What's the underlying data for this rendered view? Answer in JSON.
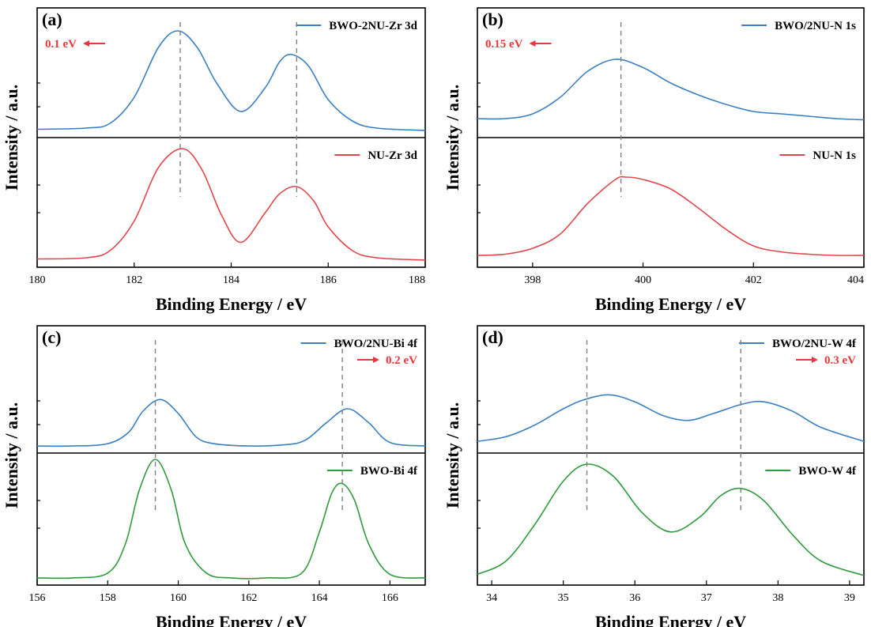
{
  "colors": {
    "blue": "#3a7fc1",
    "red": "#e0474c",
    "green": "#2e9a3c",
    "shift": "#e8383d",
    "ref": "#808080"
  },
  "chart_data": [
    {
      "panel": "(a)",
      "type": "line",
      "xlabel": "Binding Energy / eV",
      "ylabel": "Intensity / a.u.",
      "xlim": [
        180,
        188
      ],
      "xticks": [
        180,
        182,
        184,
        186,
        188
      ],
      "xtick_labels": [
        "180",
        "182",
        "184",
        "186",
        "188"
      ],
      "shift": {
        "text": "0.1 eV",
        "direction": "left",
        "position": "top-left"
      },
      "ref_lines_x": [
        182.95,
        185.35
      ],
      "legend_placement": "top-right",
      "series": [
        {
          "name": "BWO-2NU-Zr 3d",
          "color": "#3a7fc1",
          "x": [
            180,
            181,
            181.5,
            182,
            182.5,
            182.9,
            183.3,
            183.7,
            184.2,
            184.7,
            185.0,
            185.25,
            185.6,
            186.0,
            186.5,
            187,
            188
          ],
          "y": [
            0.03,
            0.04,
            0.08,
            0.3,
            0.72,
            0.86,
            0.72,
            0.42,
            0.18,
            0.38,
            0.6,
            0.66,
            0.56,
            0.28,
            0.1,
            0.04,
            0.02
          ]
        },
        {
          "name": "NU-Zr 3d",
          "color": "#e0474c",
          "x": [
            180,
            181,
            181.5,
            182,
            182.5,
            183.0,
            183.4,
            183.8,
            184.2,
            184.7,
            185.0,
            185.35,
            185.7,
            186.0,
            186.5,
            187,
            188
          ],
          "y": [
            0.03,
            0.04,
            0.1,
            0.35,
            0.8,
            0.96,
            0.78,
            0.4,
            0.17,
            0.42,
            0.58,
            0.64,
            0.52,
            0.3,
            0.1,
            0.04,
            0.02
          ]
        }
      ]
    },
    {
      "panel": "(b)",
      "type": "line",
      "xlabel": "Binding Energy / eV",
      "ylabel": "Intensity / a.u.",
      "xlim": [
        397,
        404
      ],
      "xticks": [
        398,
        400,
        402,
        404
      ],
      "xtick_labels": [
        "398",
        "400",
        "402",
        "404"
      ],
      "shift": {
        "text": "0.15 eV",
        "direction": "left",
        "position": "top-left"
      },
      "ref_lines_x": [
        399.6
      ],
      "legend_placement": "top-right",
      "series": [
        {
          "name": "BWO/2NU-N 1s",
          "color": "#3a7fc1",
          "x": [
            397,
            397.5,
            398,
            398.5,
            399,
            399.5,
            400,
            400.5,
            401,
            401.5,
            402,
            402.5,
            403,
            403.5,
            404
          ],
          "y": [
            0.12,
            0.12,
            0.16,
            0.3,
            0.52,
            0.62,
            0.55,
            0.42,
            0.32,
            0.24,
            0.18,
            0.16,
            0.14,
            0.12,
            0.11
          ]
        },
        {
          "name": "NU-N 1s",
          "color": "#e0474c",
          "x": [
            397,
            397.5,
            398,
            398.5,
            399,
            399.5,
            399.7,
            400,
            400.5,
            401,
            401.5,
            402,
            402.5,
            403,
            403.5,
            404
          ],
          "y": [
            0.06,
            0.07,
            0.12,
            0.24,
            0.5,
            0.7,
            0.72,
            0.7,
            0.62,
            0.46,
            0.28,
            0.14,
            0.09,
            0.07,
            0.06,
            0.06
          ]
        }
      ]
    },
    {
      "panel": "(c)",
      "type": "line",
      "xlabel": "Binding Energy / eV",
      "ylabel": "Intensity / a.u.",
      "xlim": [
        156,
        167
      ],
      "xticks": [
        156,
        158,
        160,
        162,
        164,
        166
      ],
      "xtick_labels": [
        "156",
        "158",
        "160",
        "162",
        "164",
        "166"
      ],
      "shift": {
        "text": "0.2 eV",
        "direction": "right",
        "position": "top-right"
      },
      "ref_lines_x": [
        159.35,
        164.65
      ],
      "legend_placement": "top-right",
      "series": [
        {
          "name": "BWO/2NU-Bi 4f",
          "color": "#3a7fc1",
          "x": [
            156,
            157,
            158,
            158.6,
            159.0,
            159.5,
            160.0,
            160.5,
            161,
            162,
            163,
            163.6,
            164.2,
            164.8,
            165.4,
            166,
            167
          ],
          "y": [
            0.02,
            0.02,
            0.04,
            0.14,
            0.32,
            0.42,
            0.3,
            0.1,
            0.04,
            0.02,
            0.03,
            0.07,
            0.22,
            0.34,
            0.22,
            0.05,
            0.02
          ]
        },
        {
          "name": "BWO-Bi 4f",
          "color": "#2e9a3c",
          "x": [
            156,
            157,
            158,
            158.5,
            158.9,
            159.35,
            159.8,
            160.2,
            160.8,
            161.5,
            162.5,
            163.5,
            164.0,
            164.35,
            164.65,
            165.0,
            165.4,
            166,
            167
          ],
          "y": [
            0.02,
            0.02,
            0.06,
            0.3,
            0.75,
            1.0,
            0.75,
            0.3,
            0.06,
            0.02,
            0.02,
            0.06,
            0.4,
            0.72,
            0.8,
            0.66,
            0.3,
            0.05,
            0.02
          ]
        }
      ]
    },
    {
      "panel": "(d)",
      "type": "line",
      "xlabel": "Binding Energy / eV",
      "ylabel": "Intensity / a.u.",
      "xlim": [
        33.8,
        39.2
      ],
      "xticks": [
        34,
        35,
        36,
        37,
        38,
        39
      ],
      "xtick_labels": [
        "34",
        "35",
        "36",
        "37",
        "38",
        "39"
      ],
      "shift": {
        "text": "0.3 eV",
        "direction": "right",
        "position": "top-right"
      },
      "ref_lines_x": [
        35.33,
        37.48
      ],
      "legend_placement": "top-right",
      "series": [
        {
          "name": "BWO/2NU-W 4f",
          "color": "#3a7fc1",
          "x": [
            33.8,
            34.2,
            34.6,
            35.0,
            35.3,
            35.65,
            36.0,
            36.4,
            36.75,
            37.1,
            37.5,
            37.8,
            38.2,
            38.6,
            39.2
          ],
          "y": [
            0.06,
            0.1,
            0.2,
            0.34,
            0.42,
            0.46,
            0.4,
            0.28,
            0.24,
            0.3,
            0.38,
            0.4,
            0.32,
            0.18,
            0.06
          ]
        },
        {
          "name": "BWO-W 4f",
          "color": "#2e9a3c",
          "x": [
            33.8,
            34.2,
            34.6,
            35.0,
            35.33,
            35.7,
            36.1,
            36.5,
            36.9,
            37.2,
            37.48,
            37.8,
            38.2,
            38.6,
            39.2
          ],
          "y": [
            0.05,
            0.16,
            0.46,
            0.82,
            0.96,
            0.86,
            0.56,
            0.4,
            0.52,
            0.7,
            0.76,
            0.66,
            0.38,
            0.16,
            0.04
          ]
        }
      ]
    }
  ]
}
